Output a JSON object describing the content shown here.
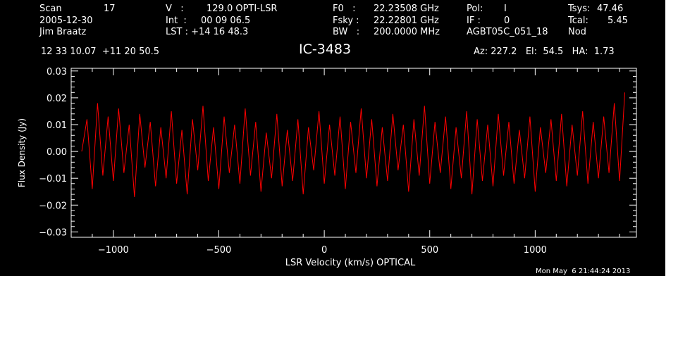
{
  "header": {
    "scan_label": "Scan",
    "scan_value": "17",
    "date": "2005-12-30",
    "observer": "Jim Braatz",
    "coords": "12 33 10.07  +11 20 50.5",
    "v_label": "V   :",
    "v_value": "129.0 OPTI-LSR",
    "int_label": "Int  :",
    "int_value": "00 09 06.5",
    "lst_label": "LST : +14 16 48.3",
    "f0_label": "F0   :",
    "f0_value": "22.23508 GHz",
    "fsky_label": "Fsky :",
    "fsky_value": "22.22801 GHz",
    "bw_label": "BW   :",
    "bw_value": "200.0000 MHz",
    "pol_label": "Pol:",
    "pol_value": "I",
    "if_label": "IF :",
    "if_value": "0",
    "project": "AGBT05C_051_18",
    "tsys_label": "Tsys:",
    "tsys_value": "47.46",
    "tcal_label": "Tcal:",
    "tcal_value": "5.45",
    "mode": "Nod",
    "source": "IC-3483",
    "az_el_ha": "Az: 227.2   El:  54.5   HA:  1.73",
    "timestamp": "Mon May  6 21:44:24 2013"
  },
  "chart_data": {
    "type": "line",
    "xlabel": "LSR Velocity (km/s) OPTICAL",
    "ylabel": "Flux Density (Jy)",
    "xlim": [
      -1200,
      1480
    ],
    "ylim": [
      -0.032,
      0.031
    ],
    "x_ticks": [
      -1000,
      -500,
      0,
      500,
      1000
    ],
    "x_tick_labels": [
      "−1000",
      "−500",
      "0",
      "500",
      "1000"
    ],
    "y_ticks": [
      -0.03,
      -0.02,
      -0.01,
      0.0,
      0.01,
      0.02,
      0.03
    ],
    "y_tick_labels": [
      "−0.03",
      "−0.02",
      "−0.01",
      "0.00",
      "0.01",
      "0.02",
      "0.03"
    ],
    "grid": false,
    "series": [
      {
        "color": "#ff0000",
        "x": [
          -1150,
          -1125,
          -1100,
          -1075,
          -1050,
          -1025,
          -1000,
          -975,
          -950,
          -925,
          -900,
          -875,
          -850,
          -825,
          -800,
          -775,
          -750,
          -725,
          -700,
          -675,
          -650,
          -625,
          -600,
          -575,
          -550,
          -525,
          -500,
          -475,
          -450,
          -425,
          -400,
          -375,
          -350,
          -325,
          -300,
          -275,
          -250,
          -225,
          -200,
          -175,
          -150,
          -125,
          -100,
          -75,
          -50,
          -25,
          0,
          25,
          50,
          75,
          100,
          125,
          150,
          175,
          200,
          225,
          250,
          275,
          300,
          325,
          350,
          375,
          400,
          425,
          450,
          475,
          500,
          525,
          550,
          575,
          600,
          625,
          650,
          675,
          700,
          725,
          750,
          775,
          800,
          825,
          850,
          875,
          900,
          925,
          950,
          975,
          1000,
          1025,
          1050,
          1075,
          1100,
          1125,
          1150,
          1175,
          1200,
          1225,
          1250,
          1275,
          1300,
          1325,
          1350,
          1375,
          1400,
          1425
        ],
        "y": [
          0.0,
          0.012,
          -0.014,
          0.018,
          -0.009,
          0.013,
          -0.011,
          0.016,
          -0.008,
          0.01,
          -0.017,
          0.014,
          -0.006,
          0.011,
          -0.013,
          0.009,
          -0.01,
          0.015,
          -0.012,
          0.008,
          -0.016,
          0.012,
          -0.007,
          0.017,
          -0.011,
          0.009,
          -0.014,
          0.013,
          -0.008,
          0.01,
          -0.012,
          0.016,
          -0.009,
          0.011,
          -0.015,
          0.007,
          -0.01,
          0.014,
          -0.013,
          0.008,
          -0.011,
          0.012,
          -0.016,
          0.009,
          -0.007,
          0.015,
          -0.012,
          0.01,
          -0.009,
          0.013,
          -0.014,
          0.011,
          -0.008,
          0.016,
          -0.01,
          0.012,
          -0.013,
          0.009,
          -0.011,
          0.014,
          -0.007,
          0.01,
          -0.015,
          0.012,
          -0.009,
          0.017,
          -0.012,
          0.011,
          -0.008,
          0.013,
          -0.014,
          0.009,
          -0.01,
          0.015,
          -0.016,
          0.012,
          -0.011,
          0.01,
          -0.013,
          0.014,
          -0.009,
          0.011,
          -0.012,
          0.008,
          -0.01,
          0.013,
          -0.015,
          0.009,
          -0.008,
          0.012,
          -0.011,
          0.014,
          -0.013,
          0.01,
          -0.009,
          0.015,
          -0.012,
          0.011,
          -0.01,
          0.013,
          -0.008,
          0.018,
          -0.011,
          0.022
        ]
      }
    ]
  }
}
